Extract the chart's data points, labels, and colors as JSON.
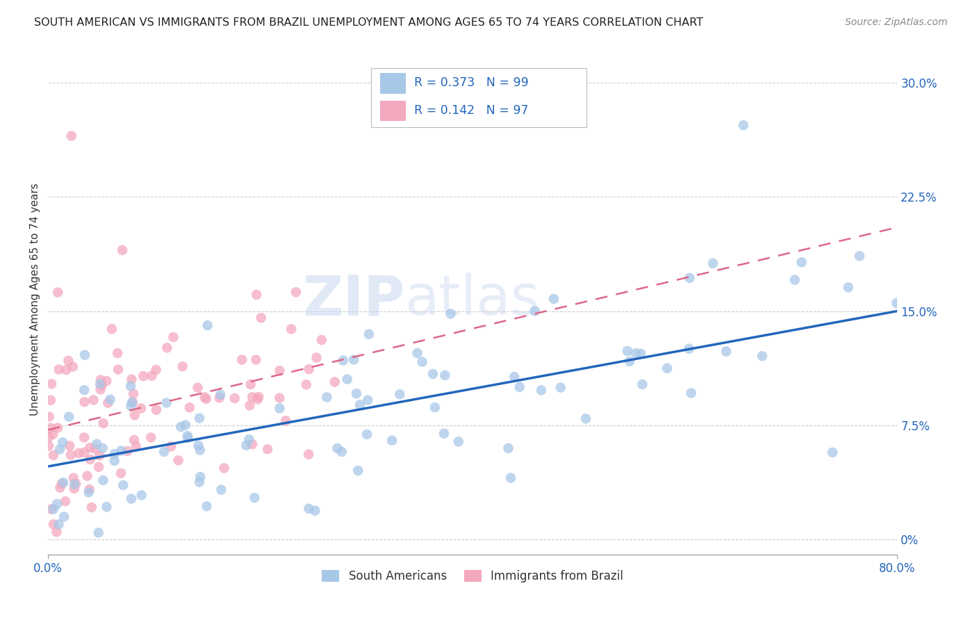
{
  "title": "SOUTH AMERICAN VS IMMIGRANTS FROM BRAZIL UNEMPLOYMENT AMONG AGES 65 TO 74 YEARS CORRELATION CHART",
  "source": "Source: ZipAtlas.com",
  "ylabel": "Unemployment Among Ages 65 to 74 years",
  "ytick_vals": [
    0.0,
    0.075,
    0.15,
    0.225,
    0.3
  ],
  "ytick_labels": [
    "0%",
    "7.5%",
    "15.0%",
    "22.5%",
    "30.0%"
  ],
  "xlim": [
    0.0,
    0.8
  ],
  "ylim": [
    -0.01,
    0.325
  ],
  "blue_color": "#a8c8e8",
  "pink_color": "#f4a8be",
  "line_blue": "#2266bb",
  "line_pink": "#dd6688",
  "series1_name": "South Americans",
  "series2_name": "Immigrants from Brazil",
  "blue_line_x0": 0.0,
  "blue_line_y0": 0.048,
  "blue_line_x1": 0.8,
  "blue_line_y1": 0.15,
  "pink_line_x0": 0.0,
  "pink_line_y0": 0.072,
  "pink_line_x1": 0.8,
  "pink_line_y1": 0.205
}
